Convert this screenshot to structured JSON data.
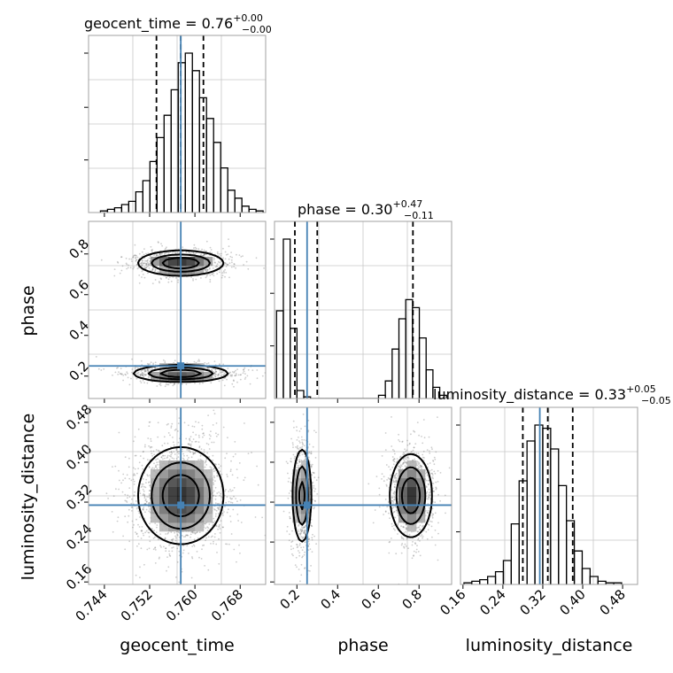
{
  "chart_data": {
    "type": "corner",
    "parameters": [
      "geocent_time",
      "phase",
      "luminosity_distance"
    ],
    "truth": {
      "geocent_time": 0.7575,
      "phase": 0.25,
      "luminosity_distance": 0.314
    },
    "truth_color": "#4682b4",
    "grid": true,
    "titles": [
      {
        "label": "geocent_time = 0.76",
        "upper": "+0.00",
        "lower": "−0.00"
      },
      {
        "label": "phase = 0.30",
        "upper": "+0.47",
        "lower": "−0.11"
      },
      {
        "label": "luminosity_distance = 0.33",
        "upper": "+0.05",
        "lower": "−0.05"
      }
    ],
    "axes": {
      "geocent_time": {
        "range": [
          0.7412,
          0.7725
        ],
        "ticks": [
          "0.744",
          "0.752",
          "0.760",
          "0.768"
        ]
      },
      "phase": {
        "range": [
          0.09,
          0.96
        ],
        "ticks": [
          "0.2",
          "0.4",
          "0.6",
          "0.8"
        ]
      },
      "luminosity_distance": {
        "range": [
          0.155,
          0.51
        ],
        "ticks": [
          "0.16",
          "0.24",
          "0.32",
          "0.40",
          "0.48"
        ]
      }
    },
    "axis_labels": {
      "x": [
        "geocent_time",
        "phase",
        "luminosity_distance"
      ],
      "y": [
        "phase",
        "luminosity_distance"
      ]
    },
    "histograms": {
      "geocent_time": {
        "x0": 0.7433,
        "width": 0.00125,
        "values": [
          0.01,
          0.02,
          0.03,
          0.05,
          0.07,
          0.13,
          0.2,
          0.32,
          0.47,
          0.61,
          0.77,
          0.94,
          1.0,
          0.89,
          0.72,
          0.59,
          0.44,
          0.28,
          0.14,
          0.09,
          0.04,
          0.02,
          0.01
        ],
        "quantiles": [
          0.7532,
          0.7575,
          0.7615
        ]
      },
      "phase": {
        "x0": 0.1,
        "width": 0.0334,
        "values": [
          0.55,
          1.0,
          0.44,
          0.05,
          0.01,
          0,
          0,
          0,
          0,
          0,
          0,
          0,
          0,
          0,
          0,
          0.02,
          0.11,
          0.31,
          0.5,
          0.62,
          0.57,
          0.38,
          0.18,
          0.07,
          0.02
        ],
        "quantiles": [
          0.19,
          0.3,
          0.77
        ]
      },
      "luminosity_distance": {
        "x0": 0.162,
        "width": 0.0158,
        "values": [
          0.01,
          0.02,
          0.03,
          0.05,
          0.08,
          0.15,
          0.38,
          0.65,
          0.9,
          1.0,
          0.98,
          0.85,
          0.62,
          0.4,
          0.21,
          0.1,
          0.05,
          0.02,
          0.01,
          0.01
        ],
        "quantiles": [
          0.28,
          0.33,
          0.38
        ]
      }
    },
    "modes": {
      "phase_vs_geocent_time": [
        {
          "center": [
            0.7575,
            0.755
          ],
          "sigma": [
            0.0038,
            0.031
          ],
          "weight": 0.5
        },
        {
          "center": [
            0.7575,
            0.213
          ],
          "sigma": [
            0.0042,
            0.021
          ],
          "weight": 0.5
        }
      ],
      "luminosity_distance_vs_geocent_time": [
        {
          "center": [
            0.7575,
            0.333
          ],
          "sigma": [
            0.0038,
            0.049
          ],
          "weight": 1.0
        }
      ],
      "luminosity_distance_vs_phase": [
        {
          "center": [
            0.225,
            0.333
          ],
          "sigma": [
            0.024,
            0.049
          ],
          "weight": 0.45
        },
        {
          "center": [
            0.76,
            0.333
          ],
          "sigma": [
            0.052,
            0.042
          ],
          "weight": 0.55
        }
      ]
    }
  }
}
